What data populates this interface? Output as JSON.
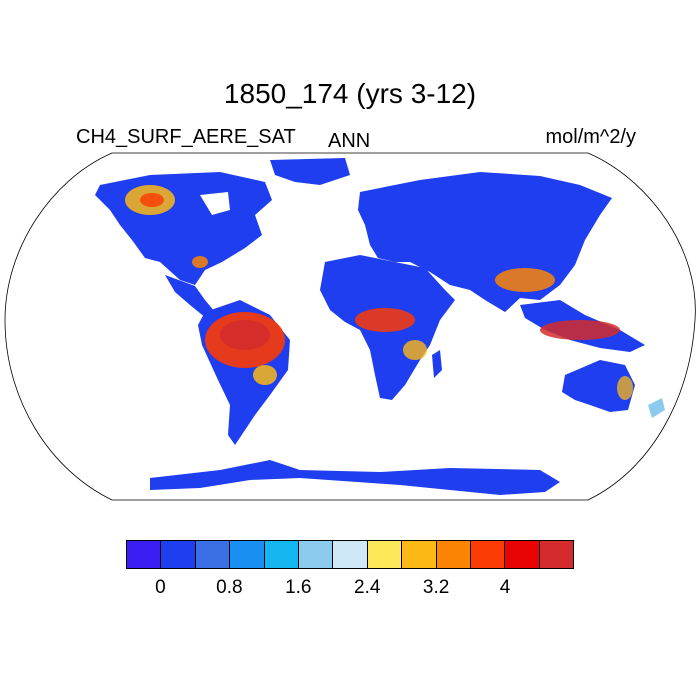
{
  "title": "1850_174 (yrs 3-12)",
  "variable_label": "CH4_SURF_AERE_SAT",
  "season_label": "ANN",
  "units_label": "mol/m^2/y",
  "map": {
    "projection": "robinson",
    "ocean_color": "#ffffff",
    "land_base_color": "#1e3ef0",
    "coastline_color": "#000000"
  },
  "colorbar": {
    "colors": [
      "#3b1ef2",
      "#1e3ef0",
      "#3a6fe6",
      "#1a8ff2",
      "#14b6f2",
      "#8ccbee",
      "#cfe8f7",
      "#fde85a",
      "#fcb814",
      "#fc8404",
      "#fc3a04",
      "#e80404",
      "#d42c2c"
    ],
    "labels": [
      "0",
      "0.8",
      "1.6",
      "2.4",
      "3.2",
      "4"
    ]
  }
}
